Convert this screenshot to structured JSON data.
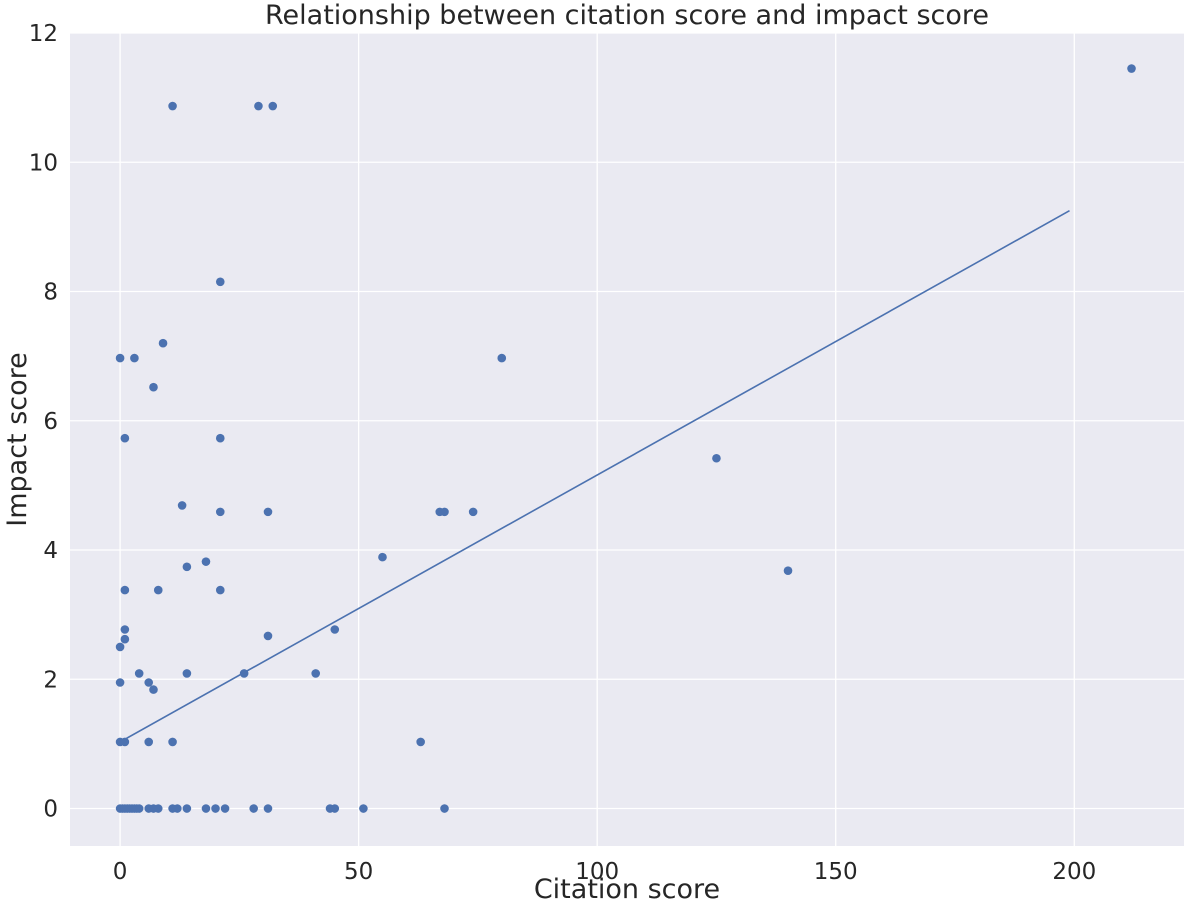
{
  "chart_data": {
    "type": "scatter",
    "title": "Relationship between citation score and impact score",
    "xlabel": "Citation score",
    "ylabel": "Impact score",
    "xlim": [
      -10.5,
      223
    ],
    "ylim": [
      -0.58,
      12
    ],
    "xticks": [
      0,
      50,
      100,
      150,
      200
    ],
    "yticks": [
      0,
      2,
      4,
      6,
      8,
      10,
      12
    ],
    "grid": true,
    "legend": "none",
    "colors": {
      "background": "#eaeaf2",
      "grid": "#ffffff",
      "points": "#4c72b0",
      "line": "#4c72b0"
    },
    "series": [
      {
        "points": [
          [
            212,
            11.45
          ],
          [
            11,
            10.87
          ],
          [
            29,
            10.87
          ],
          [
            32,
            10.87
          ],
          [
            21,
            8.15
          ],
          [
            9,
            7.2
          ],
          [
            0,
            6.97
          ],
          [
            3,
            6.97
          ],
          [
            80,
            6.97
          ],
          [
            7,
            6.52
          ],
          [
            1,
            5.73
          ],
          [
            21,
            5.73
          ],
          [
            125,
            5.42
          ],
          [
            13,
            4.69
          ],
          [
            21,
            4.59
          ],
          [
            31,
            4.59
          ],
          [
            67,
            4.59
          ],
          [
            68,
            4.59
          ],
          [
            74,
            4.59
          ],
          [
            55,
            3.89
          ],
          [
            18,
            3.82
          ],
          [
            14,
            3.74
          ],
          [
            140,
            3.68
          ],
          [
            1,
            3.38
          ],
          [
            8,
            3.38
          ],
          [
            21,
            3.38
          ],
          [
            1,
            2.77
          ],
          [
            45,
            2.77
          ],
          [
            31,
            2.67
          ],
          [
            1,
            2.62
          ],
          [
            0,
            2.5
          ],
          [
            4,
            2.09
          ],
          [
            14,
            2.09
          ],
          [
            26,
            2.09
          ],
          [
            41,
            2.09
          ],
          [
            0,
            1.95
          ],
          [
            6,
            1.95
          ],
          [
            7,
            1.84
          ],
          [
            0,
            1.03
          ],
          [
            1,
            1.03
          ],
          [
            6,
            1.03
          ],
          [
            11,
            1.03
          ],
          [
            63,
            1.03
          ],
          [
            0,
            0
          ],
          [
            0.5,
            0
          ],
          [
            1,
            0
          ],
          [
            1.5,
            0
          ],
          [
            2,
            0
          ],
          [
            2.5,
            0
          ],
          [
            3,
            0
          ],
          [
            3.5,
            0
          ],
          [
            4,
            0
          ],
          [
            6,
            0
          ],
          [
            7,
            0
          ],
          [
            8,
            0
          ],
          [
            11,
            0
          ],
          [
            12,
            0
          ],
          [
            14,
            0
          ],
          [
            18,
            0
          ],
          [
            20,
            0
          ],
          [
            22,
            0
          ],
          [
            28,
            0
          ],
          [
            31,
            0
          ],
          [
            44,
            0
          ],
          [
            45,
            0
          ],
          [
            51,
            0
          ],
          [
            68,
            0
          ]
        ]
      }
    ],
    "regression_line": {
      "x": [
        0,
        199
      ],
      "y": [
        1.03,
        9.25
      ]
    }
  }
}
